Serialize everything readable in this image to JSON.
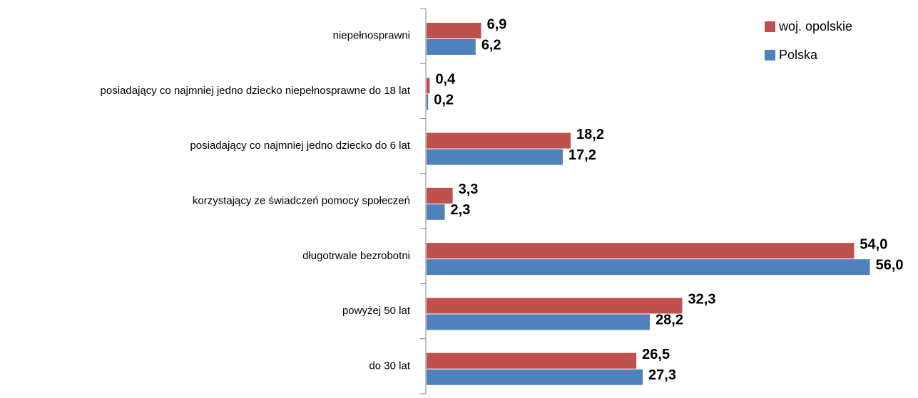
{
  "chart_data": {
    "type": "barh",
    "categories": [
      "niepełnosprawni",
      "posiadający co najmniej jedno dziecko niepełnosprawne do 18 lat",
      "posiadający co najmniej jedno dziecko do 6 lat",
      "korzystający ze świadczeń pomocy społeczeń",
      "długotrwale bezrobotni",
      "powyżej 50 lat",
      "do 30 lat"
    ],
    "series": [
      {
        "name": "woj. opolskie",
        "color": "#c0504d",
        "values": [
          6.9,
          0.4,
          18.2,
          3.3,
          54.0,
          32.3,
          26.5
        ],
        "value_labels": [
          "6,9",
          "0,4",
          "18,2",
          "3,3",
          "54,0",
          "32,3",
          "26,5"
        ]
      },
      {
        "name": "Polska",
        "color": "#4f81bd",
        "values": [
          6.2,
          0.2,
          17.2,
          2.3,
          56.0,
          28.2,
          27.3
        ],
        "value_labels": [
          "6,2",
          "0,2",
          "17,2",
          "2,3",
          "56,0",
          "28,2",
          "27,3"
        ]
      }
    ],
    "legend": "top-right"
  }
}
